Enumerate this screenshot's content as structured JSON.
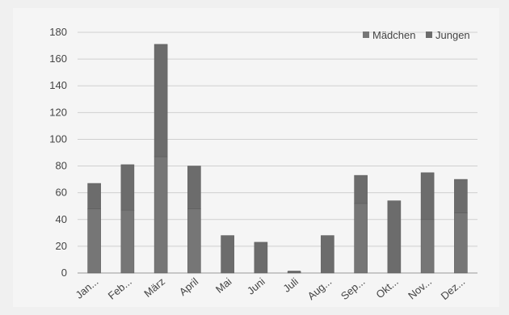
{
  "chart_data": {
    "type": "bar",
    "stacked": true,
    "categories": [
      "Jan...",
      "Feb...",
      "März",
      "April",
      "Mai",
      "Juni",
      "Juli",
      "Aug...",
      "Sep...",
      "Okt...",
      "Nov...",
      "Dez..."
    ],
    "series": [
      {
        "name": "Mädchen",
        "values": [
          48,
          47,
          87,
          48,
          0,
          0,
          0,
          0,
          52,
          0,
          40,
          45
        ],
        "color": "#767676"
      },
      {
        "name": "Jungen",
        "values": [
          19,
          34,
          84,
          32,
          28,
          23,
          1,
          28,
          21,
          54,
          35,
          25
        ],
        "color": "#6c6c6c"
      }
    ],
    "totals": [
      67,
      81,
      171,
      80,
      28,
      23,
      1,
      28,
      73,
      54,
      75,
      70
    ],
    "title": "",
    "xlabel": "",
    "ylabel": "",
    "ylim": [
      0,
      180
    ],
    "yticks": [
      0,
      20,
      40,
      60,
      80,
      100,
      120,
      140,
      160,
      180
    ],
    "grid": true,
    "legend_position": "top-right",
    "gridline_color": "#cfcfcf",
    "axis_color": "#999999"
  }
}
